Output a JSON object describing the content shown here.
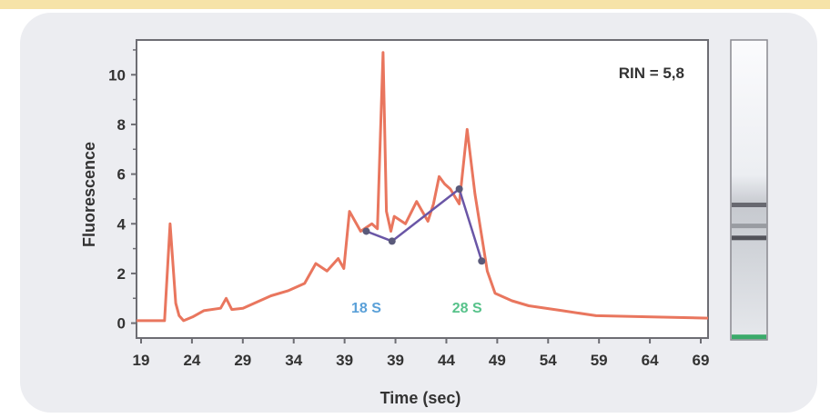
{
  "chart_data": {
    "type": "line",
    "title": "",
    "xlabel": "Time (sec)",
    "ylabel": "Fluorescence",
    "xlim": [
      19,
      70
    ],
    "ylim": [
      -0.6,
      11.4
    ],
    "x_ticks": [
      "19",
      "24",
      "29",
      "34",
      "39",
      "39",
      "44",
      "49",
      "54",
      "59",
      "64",
      "69"
    ],
    "y_ticks": [
      0,
      2,
      4,
      6,
      8,
      10
    ],
    "annotation": "RIN = 5,8",
    "markers": [
      {
        "label": "18 S",
        "x": 39.5,
        "color": "#5aa0d8"
      },
      {
        "label": "28 S",
        "x": 48.5,
        "color": "#57c28a"
      }
    ],
    "series": [
      {
        "color": "#e9765e",
        "x": [
          19,
          21.5,
          22,
          22.5,
          22.8,
          23.2,
          24,
          25,
          26.5,
          27,
          27.5,
          28.5,
          29.5,
          31,
          32.5,
          34,
          35,
          36,
          37,
          37.5,
          38,
          39,
          40,
          40.5,
          41,
          41.3,
          41.7,
          42,
          43,
          44,
          45,
          45.5,
          46,
          46.5,
          47,
          47.8,
          48.5,
          49.2,
          49.8,
          50.3,
          51,
          52.5,
          54,
          57,
          60,
          65,
          70
        ],
        "values": [
          0.1,
          0.1,
          4.0,
          0.8,
          0.3,
          0.1,
          0.25,
          0.5,
          0.6,
          1.0,
          0.55,
          0.6,
          0.8,
          1.1,
          1.3,
          1.6,
          2.4,
          2.1,
          2.6,
          2.2,
          4.5,
          3.7,
          4.0,
          3.8,
          10.9,
          4.5,
          3.7,
          4.3,
          4.0,
          4.9,
          4.1,
          4.8,
          5.9,
          5.6,
          5.4,
          4.8,
          7.8,
          5.2,
          3.5,
          2.1,
          1.2,
          0.9,
          0.7,
          0.5,
          0.3,
          0.25,
          0.2
        ]
      },
      {
        "color": "#6a56a6",
        "x": [
          39.5,
          41.8,
          47.8,
          49.8
        ],
        "values": [
          3.7,
          3.3,
          5.4,
          2.5
        ]
      }
    ],
    "gel_bands": [
      {
        "position": 0.55,
        "intensity": 0.6
      },
      {
        "position": 0.62,
        "intensity": 0.3
      },
      {
        "position": 0.66,
        "intensity": 0.75
      },
      {
        "position": 0.99,
        "intensity": 0.9,
        "color": "#3aaa6a"
      }
    ]
  }
}
